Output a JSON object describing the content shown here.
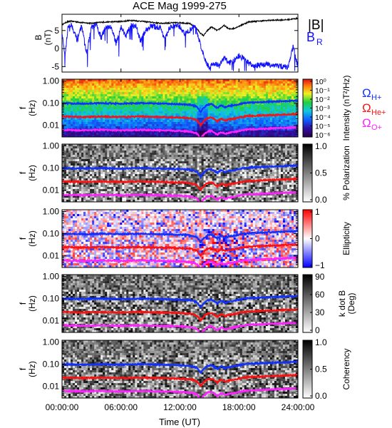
{
  "title": "ACE Mag 1999-275",
  "colors": {
    "B_total": "#000000",
    "B_R": "#1010ff",
    "omega_H": "#1030ff",
    "omega_He": "#ff1010",
    "omega_O": "#ff22ff"
  },
  "x_axis": {
    "label": "Time (UT)",
    "ticks": [
      "00:00:00",
      "06:00:00",
      "12:00:00",
      "18:00:00",
      "24:00:00"
    ],
    "range_hours": [
      0,
      24
    ]
  },
  "chart_data": [
    {
      "type": "line",
      "panel": "magnetic-field",
      "ylabel": "B",
      "yunit": "(nT)",
      "ylim": [
        -6.5,
        9.5
      ],
      "yticks": [
        "5",
        "0",
        "-5"
      ],
      "ytick_values": [
        5,
        0,
        -5
      ],
      "legend": [
        "|B|",
        "B_R"
      ],
      "legend_main": [
        "|B|",
        "B"
      ],
      "legend_sub": [
        "",
        "R"
      ],
      "series": [
        {
          "name": "|B|",
          "x": [
            0,
            0.5,
            1,
            1.5,
            2,
            3,
            4,
            5,
            6,
            7,
            8,
            9,
            10,
            11,
            12,
            13,
            13.7,
            14.1,
            14.4,
            14.8,
            15.2,
            15.8,
            16.5,
            17,
            17.5,
            18,
            18.5,
            19,
            20,
            21,
            22,
            23,
            24
          ],
          "y": [
            6.6,
            7.4,
            7.6,
            7.4,
            7.2,
            7.0,
            7.3,
            7.4,
            7.5,
            7.8,
            7.6,
            7.3,
            7.0,
            7.1,
            7.2,
            6.9,
            5.6,
            4.2,
            3.6,
            5.0,
            6.0,
            5.0,
            6.4,
            5.4,
            5.6,
            6.2,
            6.8,
            7.4,
            7.6,
            7.8,
            7.9,
            8.0,
            8.4
          ]
        },
        {
          "name": "B_R",
          "x": [
            0,
            0.3,
            0.6,
            1,
            1.5,
            2,
            2.5,
            3,
            3.5,
            4,
            4.5,
            5,
            5.5,
            6,
            6.5,
            7,
            7.5,
            8,
            8.5,
            9,
            9.5,
            10,
            10.5,
            11,
            11.5,
            12,
            12.5,
            13,
            13.5,
            14,
            14.5,
            15,
            15.5,
            16,
            16.5,
            17,
            17.5,
            18,
            18.5,
            19,
            19.5,
            20,
            21,
            22,
            23,
            23.5,
            24
          ],
          "y": [
            4.0,
            -2.0,
            5.8,
            6.6,
            2.5,
            6.3,
            -1.5,
            6.0,
            6.4,
            3.0,
            6.2,
            5.9,
            1.5,
            6.0,
            3.5,
            6.4,
            6.3,
            2.0,
            5.0,
            6.2,
            6.0,
            5.8,
            2.5,
            6.0,
            6.3,
            6.1,
            4.0,
            5.0,
            6.5,
            2.0,
            -3.0,
            -5.2,
            -4.0,
            -4.8,
            -2.5,
            -4.0,
            -3.5,
            -2.0,
            -2.8,
            -4.0,
            -5.0,
            -4.6,
            -4.4,
            -4.8,
            -5.2,
            0.5,
            -5.0
          ]
        }
      ]
    },
    {
      "type": "heatmap",
      "panel": "intensity",
      "ylabel": "f",
      "yunit": "(Hz)",
      "yscale": "log",
      "ylim": [
        0.003,
        1.2
      ],
      "yticks": [
        "1.00",
        "0.10",
        "0.01"
      ],
      "colorbar": {
        "label": "Intensity (nT²/Hz)",
        "ticks": [
          "10⁰",
          "10⁻¹",
          "10⁻²",
          "10⁻³",
          "10⁻⁴",
          "10⁻⁵",
          "10⁻⁶"
        ],
        "scale": "rainbow"
      },
      "legend": [
        "ΩH+",
        "ΩHe+",
        "ΩO+"
      ],
      "legend_main": [
        "Ω",
        "Ω",
        "Ω"
      ],
      "legend_sub": [
        "H+",
        "He+",
        "O+"
      ]
    },
    {
      "type": "heatmap",
      "panel": "polarization",
      "ylabel": "f",
      "yunit": "(Hz)",
      "yscale": "log",
      "yticks": [
        "1.00",
        "0.10",
        "0.01"
      ],
      "colorbar": {
        "label": "% Polarization",
        "ticks": [
          "1.0",
          "0.5",
          "0.0"
        ],
        "scale": "gray"
      }
    },
    {
      "type": "heatmap",
      "panel": "ellipticity",
      "ylabel": "f",
      "yunit": "(Hz)",
      "yscale": "log",
      "yticks": [
        "1.00",
        "0.10",
        "0.01"
      ],
      "colorbar": {
        "label": "Ellipticity",
        "ticks": [
          "1",
          "0",
          "−1"
        ],
        "scale": "bluewhitered"
      }
    },
    {
      "type": "heatmap",
      "panel": "k-dot-b",
      "ylabel": "f",
      "yunit": "(Hz)",
      "yscale": "log",
      "yticks": [
        "1.00",
        "0.10",
        "0.01"
      ],
      "colorbar": {
        "label": "k dot B",
        "label2": "(Deg)",
        "ticks": [
          "90",
          "60",
          "30",
          "0"
        ],
        "scale": "gray"
      }
    },
    {
      "type": "heatmap",
      "panel": "coherency",
      "ylabel": "f",
      "yunit": "(Hz)",
      "yscale": "log",
      "yticks": [
        "1.00",
        "0.10",
        "0.01"
      ],
      "colorbar": {
        "label": "Coherency",
        "ticks": [
          "1.0",
          "0.5",
          "0.0"
        ],
        "scale": "gray"
      }
    }
  ],
  "gyrofrequency_lines": {
    "x": [
      0,
      2,
      4,
      6,
      8,
      10,
      12,
      13,
      13.7,
      14.1,
      14.4,
      14.8,
      15.2,
      15.8,
      16.2,
      16.6,
      17,
      17.5,
      18,
      18.5,
      19,
      20,
      21,
      22,
      23,
      24
    ],
    "H_plus_hz": [
      0.1,
      0.095,
      0.1,
      0.095,
      0.1,
      0.095,
      0.09,
      0.085,
      0.07,
      0.04,
      0.06,
      0.085,
      0.09,
      0.06,
      0.08,
      0.065,
      0.075,
      0.08,
      0.09,
      0.1,
      0.105,
      0.11,
      0.115,
      0.12,
      0.125,
      0.13
    ]
  }
}
